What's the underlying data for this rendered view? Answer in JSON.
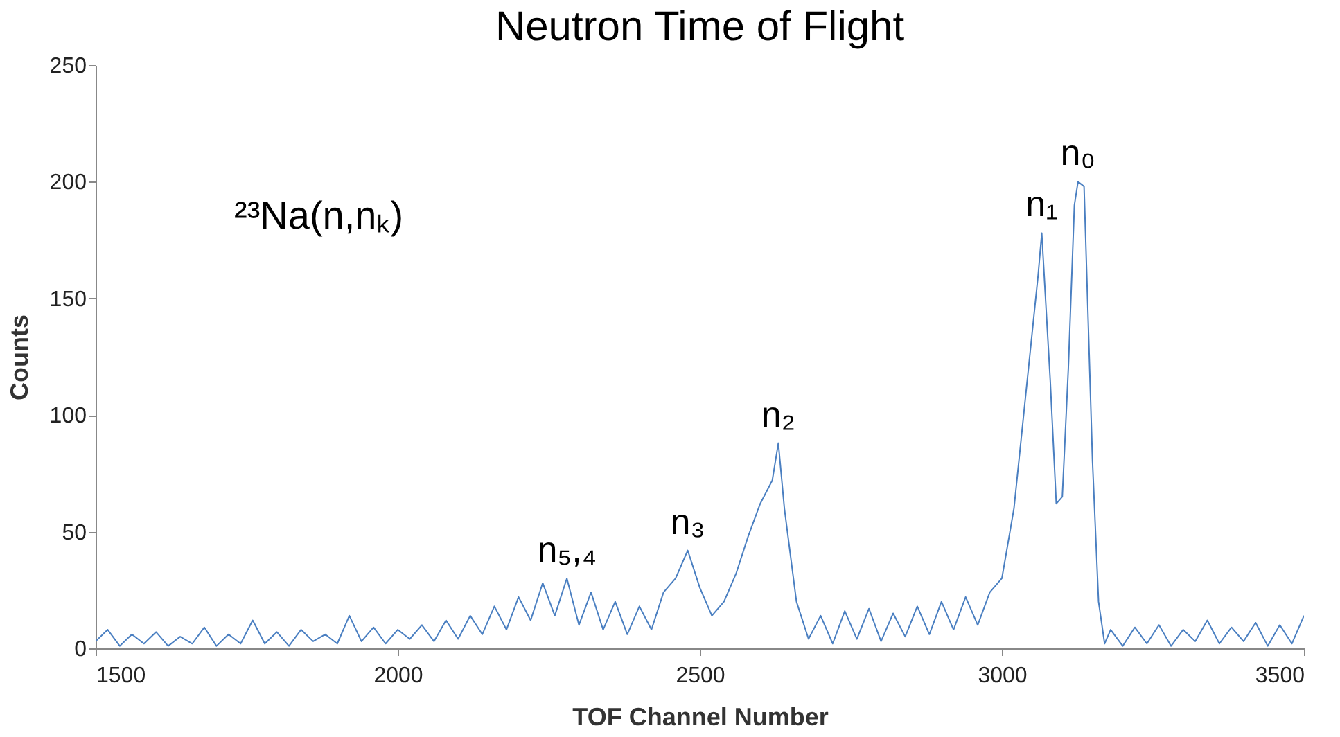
{
  "chart_data": {
    "type": "line",
    "title": "Neutron Time of Flight",
    "xlabel": "TOF Channel Number",
    "ylabel": "Counts",
    "xlim": [
      1500,
      3500
    ],
    "xticks": [
      1500,
      2000,
      2500,
      3000,
      3500
    ],
    "ylim": [
      0,
      250
    ],
    "yticks": [
      0,
      50,
      100,
      150,
      200,
      250
    ],
    "grid": false,
    "marker": "none",
    "line_style": "solid",
    "x": [
      1500,
      1520,
      1540,
      1560,
      1580,
      1600,
      1620,
      1640,
      1660,
      1680,
      1700,
      1720,
      1740,
      1760,
      1780,
      1800,
      1820,
      1840,
      1860,
      1880,
      1900,
      1920,
      1940,
      1960,
      1980,
      2000,
      2020,
      2040,
      2060,
      2080,
      2100,
      2120,
      2140,
      2160,
      2180,
      2200,
      2220,
      2240,
      2260,
      2280,
      2300,
      2320,
      2340,
      2360,
      2380,
      2400,
      2420,
      2440,
      2460,
      2480,
      2500,
      2520,
      2540,
      2560,
      2580,
      2600,
      2620,
      2630,
      2640,
      2660,
      2680,
      2700,
      2720,
      2740,
      2760,
      2780,
      2800,
      2820,
      2840,
      2860,
      2880,
      2900,
      2920,
      2940,
      2960,
      2980,
      3000,
      3020,
      3040,
      3060,
      3066,
      3080,
      3090,
      3100,
      3110,
      3120,
      3126,
      3136,
      3150,
      3160,
      3170,
      3180,
      3200,
      3220,
      3240,
      3260,
      3280,
      3300,
      3320,
      3340,
      3360,
      3380,
      3400,
      3420,
      3440,
      3460,
      3480,
      3500
    ],
    "series": [
      {
        "color": "#4a7fc1",
        "values": [
          3,
          8,
          1,
          6,
          2,
          7,
          1,
          5,
          2,
          9,
          1,
          6,
          2,
          12,
          2,
          7,
          1,
          8,
          3,
          6,
          2,
          14,
          3,
          9,
          2,
          8,
          4,
          10,
          3,
          12,
          4,
          14,
          6,
          18,
          8,
          22,
          12,
          28,
          14,
          30,
          10,
          24,
          8,
          20,
          6,
          18,
          8,
          24,
          30,
          42,
          26,
          14,
          20,
          32,
          48,
          62,
          72,
          88,
          60,
          20,
          4,
          14,
          2,
          16,
          4,
          17,
          3,
          15,
          5,
          18,
          6,
          20,
          8,
          22,
          10,
          24,
          30,
          60,
          110,
          160,
          178,
          115,
          62,
          65,
          120,
          190,
          200,
          198,
          80,
          20,
          2,
          8,
          1,
          9,
          2,
          10,
          1,
          8,
          3,
          12,
          2,
          9,
          3,
          11,
          1,
          10,
          2,
          14
        ]
      }
    ],
    "annotations": [
      "²³Na(n,nₖ)",
      {
        "text": "n₅,₄",
        "x": 2280,
        "y": 30
      },
      {
        "text": "n₃",
        "x": 2480,
        "y": 42
      },
      {
        "text": "n₂",
        "x": 2630,
        "y": 88
      },
      {
        "text": "n₁",
        "x": 3066,
        "y": 178
      },
      {
        "text": "n₀",
        "x": 3126,
        "y": 200
      }
    ]
  }
}
